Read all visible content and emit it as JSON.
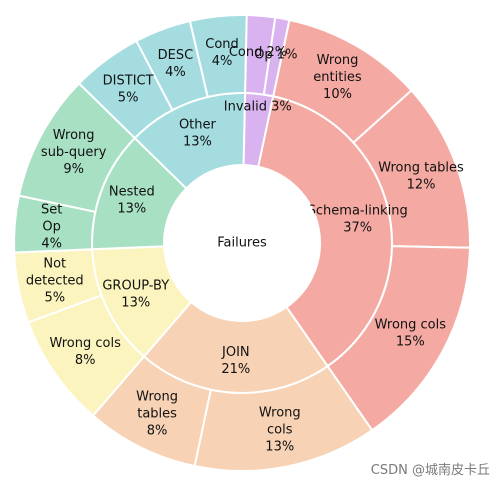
{
  "chart_data": {
    "type": "sunburst",
    "center_label": "Failures",
    "start_angle_deg": 78,
    "categories": [
      {
        "label": "Schema-linking",
        "pct_label": "37%",
        "value": 37,
        "color": "#f4aaa3",
        "children": [
          {
            "label": "Wrong entities",
            "lines": [
              "Wrong",
              "entities"
            ],
            "pct_label": "10%",
            "value": 10
          },
          {
            "label": "Wrong tables",
            "lines": [
              "Wrong tables"
            ],
            "pct_label": "12%",
            "value": 12
          },
          {
            "label": "Wrong cols",
            "lines": [
              "Wrong cols"
            ],
            "pct_label": "15%",
            "value": 15
          }
        ]
      },
      {
        "label": "JOIN",
        "pct_label": "21%",
        "value": 21,
        "color": "#f7d2b4",
        "children": [
          {
            "label": "Wrong cols",
            "lines": [
              "Wrong",
              "cols"
            ],
            "pct_label": "13%",
            "value": 13
          },
          {
            "label": "Wrong tables",
            "lines": [
              "Wrong",
              "tables"
            ],
            "pct_label": "8%",
            "value": 8
          }
        ]
      },
      {
        "label": "GROUP-BY",
        "pct_label": "13%",
        "value": 13,
        "color": "#fbf4be",
        "children": [
          {
            "label": "Wrong cols",
            "lines": [
              "Wrong cols"
            ],
            "pct_label": "8%",
            "value": 8
          },
          {
            "label": "Not detected",
            "lines": [
              "Not",
              "detected"
            ],
            "pct_label": "5%",
            "value": 5
          }
        ]
      },
      {
        "label": "Nested",
        "pct_label": "13%",
        "value": 13,
        "color": "#a8e0c4",
        "children": [
          {
            "label": "Set Op",
            "lines": [
              "Set",
              "Op"
            ],
            "pct_label": "4%",
            "value": 4
          },
          {
            "label": "Wrong sub-query",
            "lines": [
              "Wrong",
              "sub-query"
            ],
            "pct_label": "9%",
            "value": 9
          }
        ]
      },
      {
        "label": "Other",
        "pct_label": "13%",
        "value": 13,
        "color": "#a4dce0",
        "children": [
          {
            "label": "DISTICT",
            "lines": [
              "DISTICT"
            ],
            "pct_label": "5%",
            "value": 5
          },
          {
            "label": "DESC",
            "lines": [
              "DESC"
            ],
            "pct_label": "4%",
            "value": 4
          },
          {
            "label": "Cond",
            "lines": [
              "Cond"
            ],
            "pct_label": "4%",
            "value": 4
          }
        ]
      },
      {
        "label": "Invalid",
        "pct_label": "3%",
        "value": 3,
        "color": "#d9b3ef",
        "children": [
          {
            "label": "Cond",
            "lines": [
              "Cond 2%"
            ],
            "pct_label": "",
            "value": 2
          },
          {
            "label": "Op",
            "lines": [
              "Op 1%"
            ],
            "pct_label": "",
            "value": 1
          }
        ]
      }
    ]
  },
  "watermark": "CSDN @城南皮卡丘"
}
